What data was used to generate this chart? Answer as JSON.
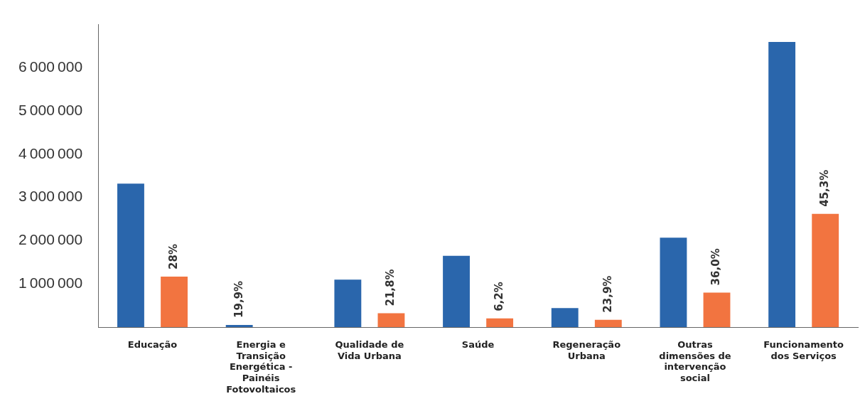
{
  "chart_data": {
    "type": "bar",
    "categories": [
      "Educação",
      "Energia e Transição Energética - Painéis Fotovoltaicos",
      "Qualidade de Vida Urbana",
      "Saúde",
      "Regeneração Urbana",
      "Outras dimensões de intervenção social",
      "Funcionamento dos Serviços"
    ],
    "series": [
      {
        "color": "#2a66ac",
        "values": [
          3320000,
          50000,
          1100000,
          1650000,
          440000,
          2070000,
          6600000
        ]
      },
      {
        "color": "#f27440",
        "values": [
          1170000,
          0,
          320000,
          200000,
          170000,
          800000,
          2620000
        ]
      }
    ],
    "annotations": [
      "28%",
      "19,9%",
      "21,8%",
      "6,2%",
      "23,9%",
      "36,0%",
      "45,3%"
    ],
    "ylim": [
      0,
      7000000
    ],
    "yticks": [
      1000000,
      2000000,
      3000000,
      4000000,
      5000000,
      6000000
    ],
    "grid": false,
    "legend": false
  }
}
